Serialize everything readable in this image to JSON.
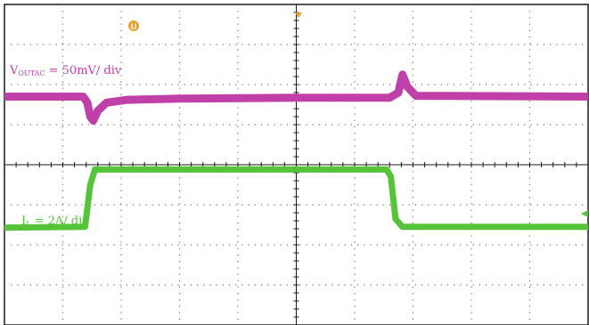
{
  "colors": {
    "background": "#ffffff",
    "frame": "#1a1a1a",
    "grid": "#6f6f6f",
    "voltage_trace": "#c040a8",
    "current_trace": "#56c43a",
    "trigger_marker": "#e8a030"
  },
  "labels": {
    "voltage_main": "V",
    "voltage_sub": "OUTAC",
    "voltage_scale": " = 50mV/ div",
    "current_main": "I",
    "current_sub": "L",
    "current_scale": " = 2A/ div",
    "trigger_marker": "U"
  },
  "chart_data": {
    "type": "line",
    "title": "",
    "xlabel": "",
    "ylabel": "",
    "grid": true,
    "x_divisions": 10,
    "y_divisions": 8,
    "xlim": [
      0,
      10
    ],
    "series": [
      {
        "name": "V_OUTAC = 50mV/ div",
        "units": "divisions",
        "points": [
          [
            0,
            5.7
          ],
          [
            1.35,
            5.7
          ],
          [
            1.42,
            5.55
          ],
          [
            1.47,
            5.2
          ],
          [
            1.52,
            5.1
          ],
          [
            1.6,
            5.35
          ],
          [
            1.75,
            5.55
          ],
          [
            2.1,
            5.62
          ],
          [
            3,
            5.65
          ],
          [
            5,
            5.67
          ],
          [
            6.6,
            5.67
          ],
          [
            6.75,
            5.8
          ],
          [
            6.82,
            6.25
          ],
          [
            6.9,
            5.95
          ],
          [
            7.05,
            5.72
          ],
          [
            10,
            5.7
          ]
        ]
      },
      {
        "name": "I_L = 2A/ div",
        "units": "divisions",
        "points": [
          [
            0,
            2.43
          ],
          [
            1.38,
            2.45
          ],
          [
            1.47,
            3.5
          ],
          [
            1.55,
            3.88
          ],
          [
            5,
            3.88
          ],
          [
            6.55,
            3.88
          ],
          [
            6.62,
            3.7
          ],
          [
            6.7,
            2.65
          ],
          [
            6.82,
            2.45
          ],
          [
            10,
            2.45
          ]
        ]
      }
    ]
  }
}
